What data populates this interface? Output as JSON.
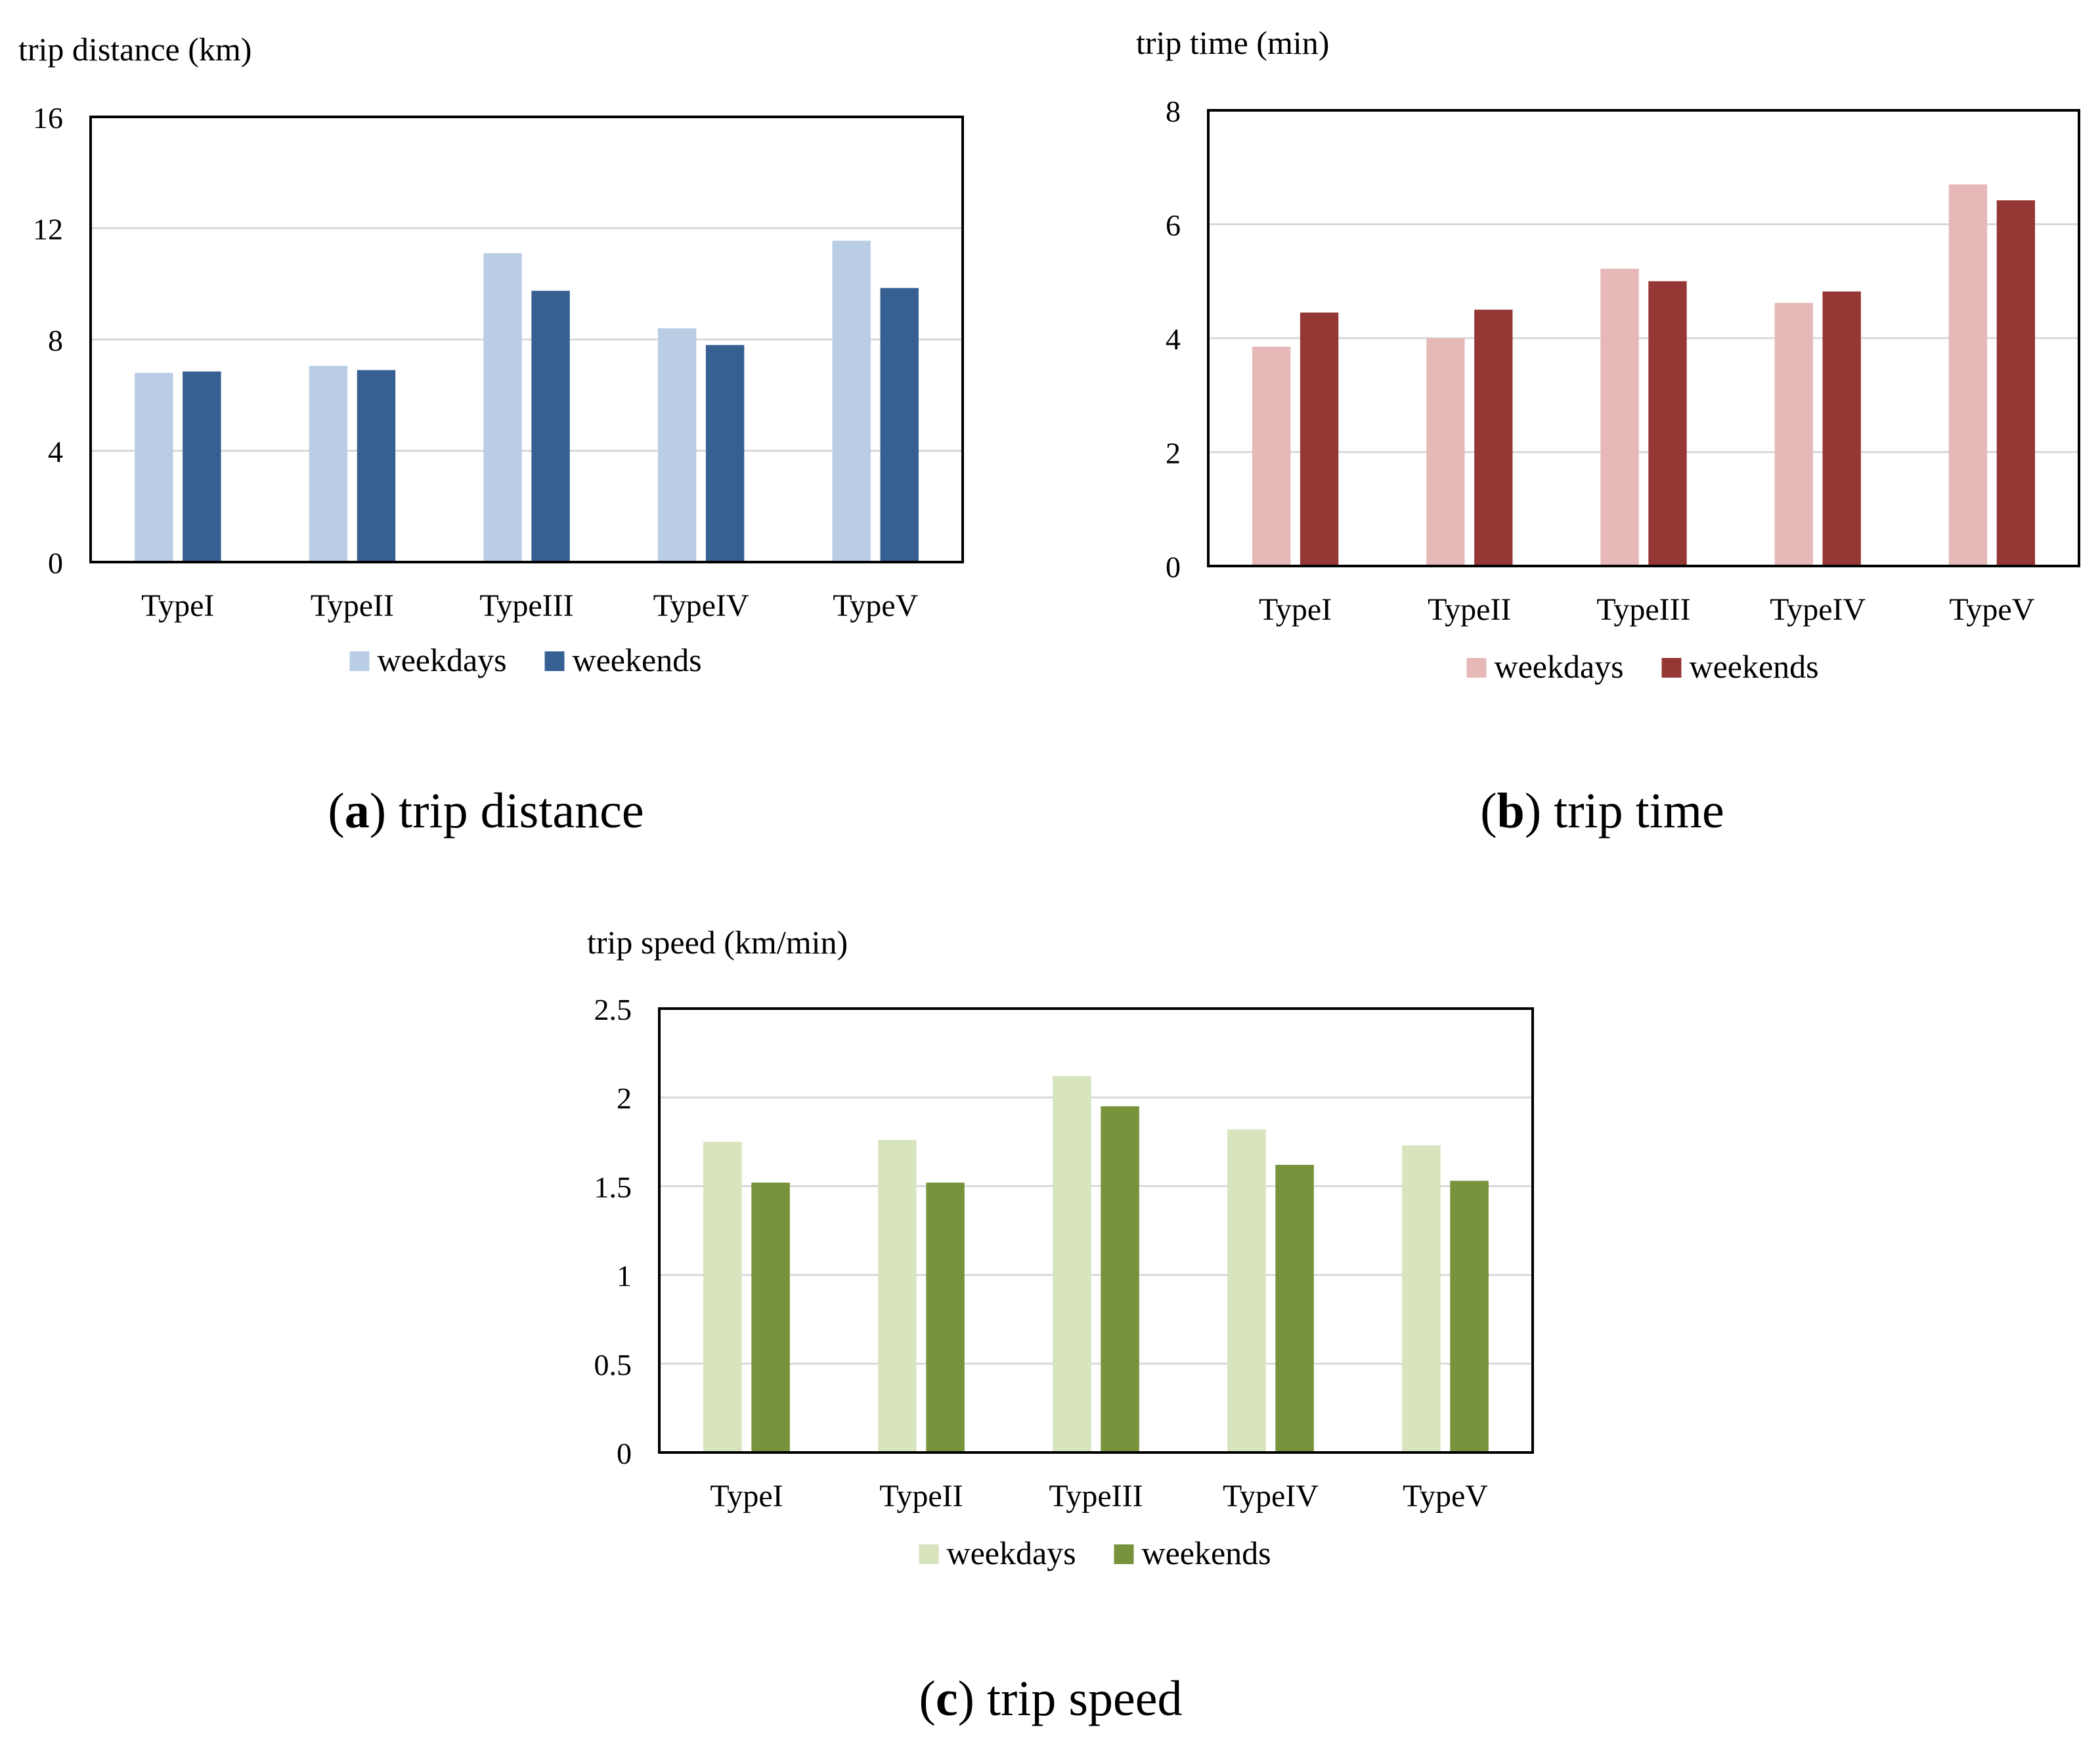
{
  "chart_data": [
    {
      "type": "bar",
      "ylabel": "trip distance (km)",
      "categories": [
        "TypeI",
        "TypeII",
        "TypeIII",
        "TypeIV",
        "TypeV"
      ],
      "series": [
        {
          "name": "weekdays",
          "values": [
            6.8,
            7.05,
            11.1,
            8.4,
            11.55
          ],
          "color": "#b9cde5"
        },
        {
          "name": "weekends",
          "values": [
            6.85,
            6.9,
            9.75,
            7.8,
            9.85
          ],
          "color": "#376092"
        }
      ],
      "ylim": [
        0,
        16
      ],
      "yticks": [
        "0",
        "4",
        "8",
        "12",
        "16"
      ],
      "grid": true,
      "legend": "bottom",
      "caption_letter": "a",
      "caption_text": "trip distance"
    },
    {
      "type": "bar",
      "ylabel": "trip time (min)",
      "categories": [
        "TypeI",
        "TypeII",
        "TypeIII",
        "TypeIV",
        "TypeV"
      ],
      "series": [
        {
          "name": "weekdays",
          "values": [
            3.85,
            4.0,
            5.22,
            4.62,
            6.7
          ],
          "color": "#e6b9b8"
        },
        {
          "name": "weekends",
          "values": [
            4.45,
            4.5,
            5.0,
            4.82,
            6.42
          ],
          "color": "#953735"
        }
      ],
      "ylim": [
        0,
        8
      ],
      "yticks": [
        "0",
        "2",
        "4",
        "6",
        "8"
      ],
      "grid": true,
      "legend": "bottom",
      "caption_letter": "b",
      "caption_text": "trip time"
    },
    {
      "type": "bar",
      "ylabel": "trip speed (km/min)",
      "categories": [
        "TypeI",
        "TypeII",
        "TypeIII",
        "TypeIV",
        "TypeV"
      ],
      "series": [
        {
          "name": "weekdays",
          "values": [
            1.75,
            1.76,
            2.12,
            1.82,
            1.73
          ],
          "color": "#d7e4bd"
        },
        {
          "name": "weekends",
          "values": [
            1.52,
            1.52,
            1.95,
            1.62,
            1.53
          ],
          "color": "#77933c"
        }
      ],
      "ylim": [
        0,
        2.5
      ],
      "yticks": [
        "0",
        "0.5",
        "1",
        "1.5",
        "2",
        "2.5"
      ],
      "grid": true,
      "legend": "bottom",
      "caption_letter": "c",
      "caption_text": "trip speed"
    }
  ]
}
